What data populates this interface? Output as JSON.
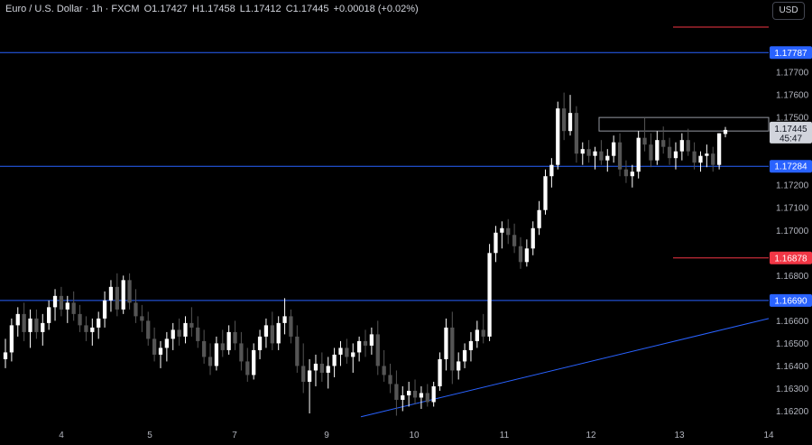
{
  "legend": {
    "symbol": "Euro / U.S. Dollar · 1h · FXCM",
    "open": "O1.17427",
    "high": "H1.17458",
    "low": "L1.17412",
    "close": "C1.17445",
    "change": "+0.00018 (+0.02%)"
  },
  "currency_label": "USD",
  "colors": {
    "background": "#000000",
    "candle_up": "#ffffff",
    "candle_down": "#555555",
    "blue_line": "#2962ff",
    "red_line": "#f23645",
    "blue_tag": "#2962ff",
    "red_tag": "#f23645"
  },
  "chart_data": {
    "type": "candlestick",
    "instrument": "Euro / U.S. Dollar",
    "timeframe": "1h",
    "ylim": [
      1.1615,
      1.1802
    ],
    "y_ticks": [
      "1.17700",
      "1.17600",
      "1.17500",
      "1.17200",
      "1.17100",
      "1.17000",
      "1.16800",
      "1.16600",
      "1.16500",
      "1.16400",
      "1.16300",
      "1.16200"
    ],
    "x_ticks": [
      "4",
      "5",
      "7",
      "9",
      "10",
      "11",
      "12",
      "13",
      "14"
    ],
    "horizontal_levels": [
      {
        "price": 1.17787,
        "label": "1.17787",
        "color": "blue"
      },
      {
        "price": 1.17284,
        "label": "1.17284",
        "color": "blue"
      },
      {
        "price": 1.1669,
        "label": "1.16690",
        "color": "blue"
      },
      {
        "price": 1.16878,
        "label": "1.16878",
        "color": "red"
      },
      {
        "price": 1.179,
        "label": "",
        "color": "red"
      }
    ],
    "current_price": {
      "price": 1.17445,
      "label": "1.17445",
      "countdown": "45:47"
    },
    "resistance_zone": [
      1.1744,
      1.175
    ],
    "trendline": {
      "from": [
        "9",
        1.16175
      ],
      "to": [
        "14",
        1.1661
      ]
    },
    "ohlc": [
      [
        1.1643,
        1.1652,
        1.1639,
        1.1646
      ],
      [
        1.1646,
        1.1661,
        1.1642,
        1.1658
      ],
      [
        1.1658,
        1.1666,
        1.1653,
        1.1663
      ],
      [
        1.1663,
        1.1668,
        1.1651,
        1.1655
      ],
      [
        1.1655,
        1.1665,
        1.1648,
        1.1661
      ],
      [
        1.1661,
        1.1665,
        1.1652,
        1.1655
      ],
      [
        1.1655,
        1.1663,
        1.1649,
        1.1659
      ],
      [
        1.1659,
        1.1669,
        1.1656,
        1.1666
      ],
      [
        1.1666,
        1.1674,
        1.166,
        1.1671
      ],
      [
        1.1671,
        1.1675,
        1.1662,
        1.1665
      ],
      [
        1.1665,
        1.1671,
        1.1659,
        1.1668
      ],
      [
        1.1668,
        1.1673,
        1.166,
        1.1663
      ],
      [
        1.1663,
        1.1667,
        1.1655,
        1.1658
      ],
      [
        1.1658,
        1.1662,
        1.1651,
        1.1655
      ],
      [
        1.1655,
        1.1661,
        1.1649,
        1.1657
      ],
      [
        1.1657,
        1.1664,
        1.1652,
        1.1661
      ],
      [
        1.1661,
        1.1673,
        1.1657,
        1.1669
      ],
      [
        1.1669,
        1.1678,
        1.1664,
        1.1675
      ],
      [
        1.1675,
        1.1681,
        1.1662,
        1.1665
      ],
      [
        1.1665,
        1.168,
        1.1663,
        1.1678
      ],
      [
        1.1678,
        1.1681,
        1.1665,
        1.1668
      ],
      [
        1.1668,
        1.1674,
        1.1659,
        1.1662
      ],
      [
        1.1662,
        1.1667,
        1.1655,
        1.166
      ],
      [
        1.166,
        1.1664,
        1.1649,
        1.1652
      ],
      [
        1.1652,
        1.1657,
        1.1642,
        1.1645
      ],
      [
        1.1645,
        1.1651,
        1.1639,
        1.1648
      ],
      [
        1.1648,
        1.1655,
        1.1642,
        1.1652
      ],
      [
        1.1652,
        1.1659,
        1.1647,
        1.1656
      ],
      [
        1.1656,
        1.1661,
        1.1649,
        1.1653
      ],
      [
        1.1653,
        1.1662,
        1.165,
        1.1659
      ],
      [
        1.1659,
        1.1666,
        1.1653,
        1.1657
      ],
      [
        1.1657,
        1.1662,
        1.1648,
        1.1651
      ],
      [
        1.1651,
        1.1656,
        1.1641,
        1.1644
      ],
      [
        1.1644,
        1.165,
        1.1636,
        1.164
      ],
      [
        1.164,
        1.1653,
        1.1638,
        1.165
      ],
      [
        1.165,
        1.1656,
        1.1644,
        1.1647
      ],
      [
        1.1647,
        1.1658,
        1.1645,
        1.1655
      ],
      [
        1.1655,
        1.166,
        1.1647,
        1.165
      ],
      [
        1.165,
        1.1655,
        1.1638,
        1.1642
      ],
      [
        1.1642,
        1.1648,
        1.1633,
        1.1636
      ],
      [
        1.1636,
        1.165,
        1.1634,
        1.1647
      ],
      [
        1.1647,
        1.1656,
        1.1643,
        1.1653
      ],
      [
        1.1653,
        1.1661,
        1.1648,
        1.1658
      ],
      [
        1.1658,
        1.1664,
        1.1647,
        1.165
      ],
      [
        1.165,
        1.1662,
        1.1647,
        1.1659
      ],
      [
        1.1659,
        1.167,
        1.1654,
        1.1662
      ],
      [
        1.1662,
        1.1665,
        1.165,
        1.1653
      ],
      [
        1.1653,
        1.1658,
        1.1637,
        1.164
      ],
      [
        1.164,
        1.165,
        1.1628,
        1.1633
      ],
      [
        1.1633,
        1.1643,
        1.1619,
        1.1638
      ],
      [
        1.1638,
        1.1645,
        1.1631,
        1.1641
      ],
      [
        1.1641,
        1.1646,
        1.1633,
        1.1637
      ],
      [
        1.1637,
        1.1644,
        1.163,
        1.164
      ],
      [
        1.164,
        1.1648,
        1.1635,
        1.1645
      ],
      [
        1.1645,
        1.1651,
        1.164,
        1.1648
      ],
      [
        1.1648,
        1.1652,
        1.1641,
        1.1644
      ],
      [
        1.1644,
        1.165,
        1.1637,
        1.1646
      ],
      [
        1.1646,
        1.1653,
        1.1642,
        1.1651
      ],
      [
        1.1651,
        1.1656,
        1.1644,
        1.1649
      ],
      [
        1.1649,
        1.1657,
        1.1645,
        1.1654
      ],
      [
        1.1654,
        1.166,
        1.1636,
        1.164
      ],
      [
        1.164,
        1.1647,
        1.1633,
        1.1636
      ],
      [
        1.1636,
        1.1641,
        1.1628,
        1.1632
      ],
      [
        1.1632,
        1.1638,
        1.1618,
        1.1625
      ],
      [
        1.1625,
        1.1631,
        1.162,
        1.1627
      ],
      [
        1.1627,
        1.1633,
        1.1622,
        1.1629
      ],
      [
        1.1629,
        1.1634,
        1.1623,
        1.1626
      ],
      [
        1.1626,
        1.1631,
        1.1621,
        1.1628
      ],
      [
        1.1628,
        1.1632,
        1.1622,
        1.1624
      ],
      [
        1.1624,
        1.1633,
        1.1622,
        1.1631
      ],
      [
        1.1631,
        1.1646,
        1.1629,
        1.1643
      ],
      [
        1.1643,
        1.1661,
        1.1638,
        1.1657
      ],
      [
        1.1657,
        1.1664,
        1.1632,
        1.1638
      ],
      [
        1.1638,
        1.1646,
        1.1634,
        1.1642
      ],
      [
        1.1642,
        1.165,
        1.1639,
        1.1647
      ],
      [
        1.1647,
        1.1655,
        1.1642,
        1.1651
      ],
      [
        1.1651,
        1.166,
        1.1648,
        1.1656
      ],
      [
        1.1656,
        1.1663,
        1.165,
        1.1653
      ],
      [
        1.1653,
        1.1694,
        1.1651,
        1.169
      ],
      [
        1.169,
        1.1702,
        1.1686,
        1.1699
      ],
      [
        1.1699,
        1.1704,
        1.1692,
        1.1701
      ],
      [
        1.1701,
        1.1705,
        1.1694,
        1.1698
      ],
      [
        1.1698,
        1.1703,
        1.169,
        1.1693
      ],
      [
        1.1693,
        1.1697,
        1.1683,
        1.1686
      ],
      [
        1.1686,
        1.1696,
        1.1684,
        1.1692
      ],
      [
        1.1692,
        1.1704,
        1.1689,
        1.1701
      ],
      [
        1.1701,
        1.1713,
        1.1698,
        1.1709
      ],
      [
        1.1709,
        1.1727,
        1.1707,
        1.1724
      ],
      [
        1.1724,
        1.1732,
        1.1719,
        1.1729
      ],
      [
        1.1729,
        1.1757,
        1.1727,
        1.1754
      ],
      [
        1.1754,
        1.1761,
        1.174,
        1.1744
      ],
      [
        1.1744,
        1.176,
        1.1742,
        1.1752
      ],
      [
        1.1752,
        1.1755,
        1.173,
        1.1734
      ],
      [
        1.1734,
        1.1739,
        1.1729,
        1.1736
      ],
      [
        1.1736,
        1.174,
        1.173,
        1.1733
      ],
      [
        1.1733,
        1.1737,
        1.1727,
        1.1735
      ],
      [
        1.1735,
        1.174,
        1.1729,
        1.1731
      ],
      [
        1.1731,
        1.1736,
        1.1726,
        1.1733
      ],
      [
        1.1733,
        1.1742,
        1.173,
        1.1739
      ],
      [
        1.1739,
        1.1743,
        1.1724,
        1.1727
      ],
      [
        1.1727,
        1.1731,
        1.1721,
        1.1724
      ],
      [
        1.1724,
        1.1729,
        1.1719,
        1.1726
      ],
      [
        1.1726,
        1.1744,
        1.1723,
        1.1741
      ],
      [
        1.1741,
        1.175,
        1.1735,
        1.1738
      ],
      [
        1.1738,
        1.1743,
        1.1728,
        1.1731
      ],
      [
        1.1731,
        1.1744,
        1.1729,
        1.174
      ],
      [
        1.174,
        1.1746,
        1.1734,
        1.1737
      ],
      [
        1.1737,
        1.1741,
        1.1729,
        1.1732
      ],
      [
        1.1732,
        1.1739,
        1.1727,
        1.1735
      ],
      [
        1.1735,
        1.1743,
        1.1731,
        1.174
      ],
      [
        1.174,
        1.1745,
        1.1733,
        1.1735
      ],
      [
        1.1735,
        1.1739,
        1.1727,
        1.173
      ],
      [
        1.173,
        1.1735,
        1.1726,
        1.1733
      ],
      [
        1.1733,
        1.1738,
        1.1728,
        1.1734
      ],
      [
        1.1734,
        1.1737,
        1.1726,
        1.1729
      ],
      [
        1.1729,
        1.1743,
        1.1727,
        1.1743
      ],
      [
        1.17427,
        1.17458,
        1.17412,
        1.17445
      ]
    ]
  }
}
